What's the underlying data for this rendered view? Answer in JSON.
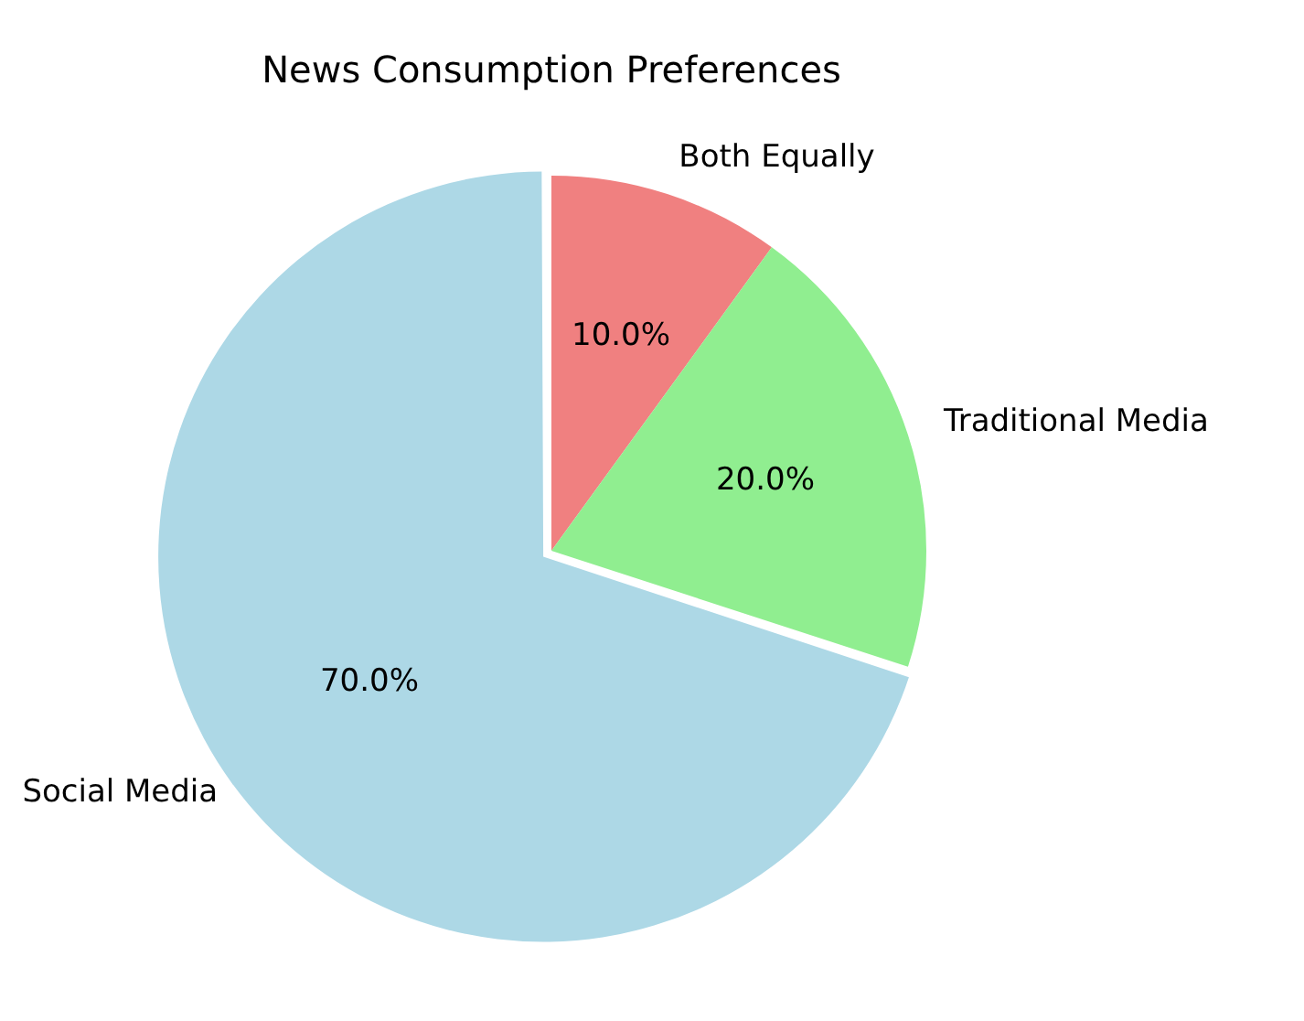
{
  "chart_data": {
    "type": "pie",
    "title": "News Consumption Preferences",
    "categories": [
      "Social Media",
      "Traditional Media",
      "Both Equally"
    ],
    "values": [
      70,
      20,
      10
    ],
    "colors": [
      "#add8e6",
      "#90ee90",
      "#f08080"
    ],
    "value_labels": [
      "70.0%",
      "20.0%",
      "10.0%"
    ],
    "legend": false
  }
}
